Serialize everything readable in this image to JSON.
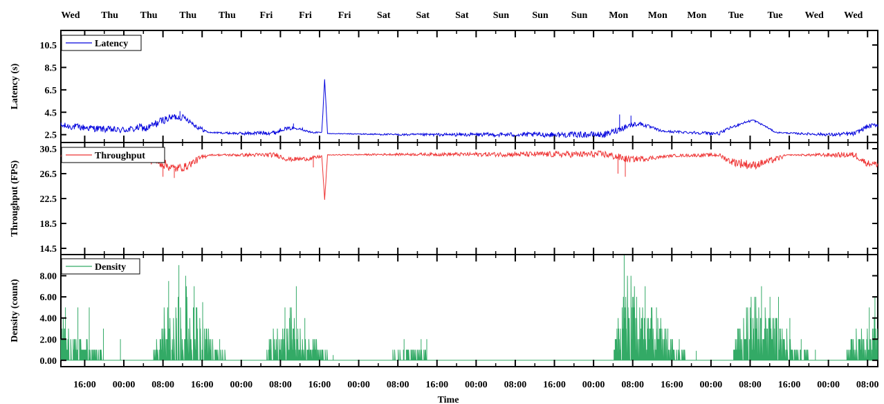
{
  "chart_data": {
    "type": "line",
    "xlabel": "Time",
    "top_day_labels": [
      "Wed",
      "Thu",
      "Thu",
      "Thu",
      "Thu",
      "Fri",
      "Fri",
      "Fri",
      "Sat",
      "Sat",
      "Sat",
      "Sun",
      "Sun",
      "Sun",
      "Mon",
      "Mon",
      "Mon",
      "Tue",
      "Tue",
      "Wed",
      "Wed"
    ],
    "bottom_time_labels": [
      "16:00",
      "00:00",
      "08:00",
      "16:00",
      "00:00",
      "08:00",
      "16:00",
      "00:00",
      "08:00",
      "16:00",
      "00:00",
      "08:00",
      "16:00",
      "00:00",
      "08:00",
      "16:00",
      "00:00",
      "08:00",
      "16:00",
      "00:00",
      "08:00"
    ],
    "x_range_hours": [
      0,
      144
    ],
    "grid": false,
    "panels": [
      {
        "name": "latency",
        "ylabel": "Latency (s)",
        "ylim": [
          1.8,
          11.8
        ],
        "yticks": [
          "2.5",
          "4.5",
          "6.5",
          "8.5",
          "10.5"
        ],
        "series": [
          {
            "name": "Latency",
            "color": "#0000dd",
            "keyframes": [
              [
                0,
                3.3
              ],
              [
                10,
                2.9
              ],
              [
                13,
                3.0
              ],
              [
                14,
                3.2
              ],
              [
                15,
                3.0
              ],
              [
                18,
                3.8
              ],
              [
                20,
                4.1
              ],
              [
                22,
                4.0
              ],
              [
                24,
                3.2
              ],
              [
                26,
                2.7
              ],
              [
                32,
                2.6
              ],
              [
                38,
                2.7
              ],
              [
                39,
                3.0
              ],
              [
                42,
                3.1
              ],
              [
                44,
                2.7
              ],
              [
                46,
                2.7
              ],
              [
                46.5,
                7.5
              ],
              [
                47,
                2.6
              ],
              [
                60,
                2.5
              ],
              [
                96,
                2.5
              ],
              [
                100,
                3.3
              ],
              [
                102,
                3.5
              ],
              [
                106,
                2.8
              ],
              [
                116,
                2.6
              ],
              [
                118,
                3.1
              ],
              [
                120,
                3.5
              ],
              [
                122,
                3.8
              ],
              [
                124,
                3.3
              ],
              [
                126,
                2.7
              ],
              [
                130,
                2.6
              ],
              [
                136,
                2.5
              ],
              [
                140,
                2.6
              ],
              [
                142,
                3.2
              ],
              [
                144,
                3.4
              ]
            ],
            "noise": [
              [
                0,
                0.3
              ],
              [
                10,
                0.3
              ],
              [
                14,
                0.3
              ],
              [
                16,
                0.4
              ],
              [
                25,
                0.2
              ],
              [
                26,
                0.05
              ],
              [
                37,
                0.2
              ],
              [
                44,
                0.1
              ],
              [
                47,
                0.02
              ],
              [
                98,
                0.3
              ],
              [
                106,
                0.1
              ],
              [
                116,
                0.15
              ],
              [
                127,
                0.05
              ],
              [
                140,
                0.2
              ],
              [
                144,
                0.2
              ]
            ],
            "spikes": [
              [
                98.5,
                4.3
              ],
              [
                100.5,
                4.2
              ],
              [
                21,
                4.6
              ],
              [
                41,
                3.5
              ]
            ]
          }
        ]
      },
      {
        "name": "throughput",
        "ylabel": "Throughput (FPS)",
        "ylim": [
          13.5,
          31.5
        ],
        "yticks": [
          "14.5",
          "18.5",
          "22.5",
          "26.5",
          "30.5"
        ],
        "series": [
          {
            "name": "Throughput",
            "color": "#ee3333",
            "keyframes": [
              [
                0,
                29.5
              ],
              [
                14,
                29.5
              ],
              [
                17,
                28.5
              ],
              [
                20,
                27.3
              ],
              [
                22,
                27.6
              ],
              [
                24,
                28.7
              ],
              [
                26,
                29.5
              ],
              [
                38,
                29.5
              ],
              [
                40,
                28.8
              ],
              [
                44,
                28.9
              ],
              [
                46,
                29.3
              ],
              [
                46.5,
                22.2
              ],
              [
                47,
                29.5
              ],
              [
                60,
                29.6
              ],
              [
                96,
                29.6
              ],
              [
                100,
                28.8
              ],
              [
                104,
                29.0
              ],
              [
                108,
                29.4
              ],
              [
                116,
                29.5
              ],
              [
                118,
                28.5
              ],
              [
                122,
                27.8
              ],
              [
                126,
                28.8
              ],
              [
                128,
                29.5
              ],
              [
                140,
                29.5
              ],
              [
                142,
                28.2
              ],
              [
                144,
                28.0
              ]
            ],
            "noise": [
              [
                0,
                0.3
              ],
              [
                14,
                0.3
              ],
              [
                16,
                0.9
              ],
              [
                25,
                0.5
              ],
              [
                26,
                0.1
              ],
              [
                38,
                0.4
              ],
              [
                45,
                0.3
              ],
              [
                47,
                0.05
              ],
              [
                98,
                0.6
              ],
              [
                104,
                0.4
              ],
              [
                106,
                0.2
              ],
              [
                116,
                0.3
              ],
              [
                120,
                0.8
              ],
              [
                127,
                0.4
              ],
              [
                128,
                0.05
              ],
              [
                140,
                0.5
              ],
              [
                144,
                0.5
              ]
            ],
            "spikes": [
              [
                98.2,
                26.5
              ],
              [
                99.5,
                26.0
              ],
              [
                18,
                26.0
              ],
              [
                20,
                25.8
              ],
              [
                44.5,
                27.5
              ]
            ]
          }
        ]
      },
      {
        "name": "density",
        "ylabel": "Density (count)",
        "ylim": [
          -0.6,
          10.0
        ],
        "yticks": [
          "0.00",
          "2.00",
          "4.00",
          "6.00",
          "8.00"
        ],
        "series": [
          {
            "name": "Density",
            "color": "#33aa66",
            "keyframes": [
              [
                0,
                2.2
              ],
              [
                3,
                1.2
              ],
              [
                7,
                0.5
              ],
              [
                9,
                0.0
              ],
              [
                16,
                0.0
              ],
              [
                17,
                1.5
              ],
              [
                20,
                4.5
              ],
              [
                23,
                3.0
              ],
              [
                27,
                1.0
              ],
              [
                30,
                0.0
              ],
              [
                36,
                0.0
              ],
              [
                37,
                1.5
              ],
              [
                40,
                3.0
              ],
              [
                43,
                1.5
              ],
              [
                47,
                0.3
              ],
              [
                58,
                0.0
              ],
              [
                59,
                0.6
              ],
              [
                62,
                0.8
              ],
              [
                66,
                0.0
              ],
              [
                97,
                0.0
              ],
              [
                98,
                2.0
              ],
              [
                100,
                4.5
              ],
              [
                104,
                2.5
              ],
              [
                108,
                1.0
              ],
              [
                111,
                0.0
              ],
              [
                118,
                0.0
              ],
              [
                119,
                1.5
              ],
              [
                122,
                3.2
              ],
              [
                125,
                2.5
              ],
              [
                129,
                1.0
              ],
              [
                134,
                0.0
              ],
              [
                138,
                0.0
              ],
              [
                139,
                1.0
              ],
              [
                142,
                2.0
              ],
              [
                144,
                2.0
              ]
            ],
            "peaks": [
              [
                0.4,
                4.0
              ],
              [
                0.8,
                5.0
              ],
              [
                3.0,
                5.0
              ],
              [
                5.0,
                5.0
              ],
              [
                7.5,
                3.0
              ],
              [
                10.5,
                2.0
              ],
              [
                20.8,
                9.0
              ],
              [
                19.0,
                7.5
              ],
              [
                22.0,
                8.0
              ],
              [
                23.5,
                7.0
              ],
              [
                25.0,
                5.5
              ],
              [
                28.0,
                2.0
              ],
              [
                41.5,
                7.0
              ],
              [
                39.5,
                5.0
              ],
              [
                43.0,
                4.0
              ],
              [
                60.5,
                2.0
              ],
              [
                63.5,
                2.0
              ],
              [
                64.5,
                2.0
              ],
              [
                48.0,
                0.5
              ],
              [
                99.3,
                10.0
              ],
              [
                101.5,
                6.0
              ],
              [
                103.0,
                7.0
              ],
              [
                105.0,
                5.0
              ],
              [
                107.0,
                3.0
              ],
              [
                109.0,
                2.0
              ],
              [
                112.0,
                0.9
              ],
              [
                123.5,
                7.0
              ],
              [
                121.5,
                5.0
              ],
              [
                125.0,
                6.0
              ],
              [
                126.5,
                6.0
              ],
              [
                128.5,
                4.0
              ],
              [
                130.5,
                2.0
              ],
              [
                133.0,
                1.0
              ],
              [
                142.5,
                5.0
              ],
              [
                143.5,
                6.0
              ]
            ]
          }
        ]
      }
    ]
  }
}
